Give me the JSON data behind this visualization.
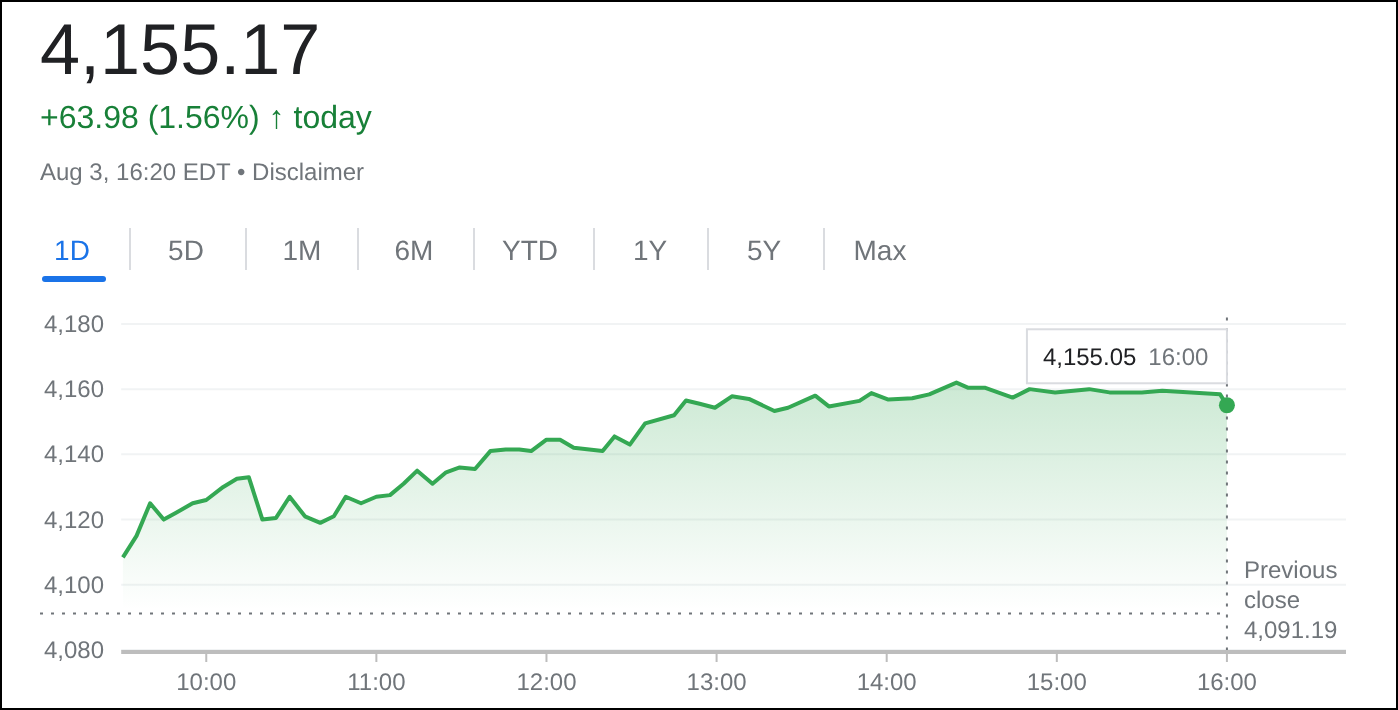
{
  "chart_data": {
    "type": "area",
    "title": "4,155.17",
    "subtitle": "+63.98 (1.56%) ↑ today",
    "annotations": [
      "Aug 3, 16:20 EDT • Disclaimer",
      "1D",
      "5D",
      "1M",
      "6M",
      "YTD",
      "1Y",
      "5Y",
      "Max",
      {
        "text": "4,155.05  16:00",
        "x": 16,
        "y": 4155.05
      }
    ],
    "x": [
      9.51,
      9.59,
      9.67,
      9.75,
      9.82,
      9.92,
      10.0,
      10.1,
      10.18,
      10.25,
      10.33,
      10.41,
      10.49,
      10.58,
      10.67,
      10.75,
      10.82,
      10.91,
      11.0,
      11.08,
      11.16,
      11.24,
      11.33,
      11.41,
      11.49,
      11.58,
      11.67,
      11.76,
      11.84,
      11.91,
      12.0,
      12.08,
      12.16,
      12.33,
      12.4,
      12.49,
      12.58,
      12.75,
      12.82,
      12.9,
      12.99,
      13.09,
      13.19,
      13.34,
      13.42,
      13.58,
      13.66,
      13.84,
      13.91,
      14.01,
      14.15,
      14.25,
      14.41,
      14.48,
      14.58,
      14.74,
      14.84,
      14.99,
      15.19,
      15.31,
      15.5,
      15.62,
      15.96,
      16.0
    ],
    "series": [
      {
        "color": "#34a853",
        "values": [
          4108.4,
          4115,
          4125,
          4120,
          4122,
          4125,
          4126,
          4130,
          4132.5,
          4133,
          4120,
          4120.5,
          4127,
          4121,
          4119,
          4121,
          4127,
          4125,
          4127,
          4127.5,
          4131,
          4135,
          4131,
          4134.5,
          4136,
          4135.5,
          4141,
          4141.5,
          4141.5,
          4141,
          4144.5,
          4144.5,
          4142,
          4141,
          4145.5,
          4143,
          4149.5,
          4152,
          4156.5,
          4155.5,
          4154.3,
          4157.8,
          4157,
          4153.3,
          4154.3,
          4158,
          4154.7,
          4156.4,
          4158.8,
          4156.8,
          4157.2,
          4158.4,
          4162,
          4160.4,
          4160.4,
          4157.4,
          4160,
          4159,
          4160,
          4159,
          4159,
          4159.5,
          4158.4,
          4155.05
        ]
      }
    ],
    "xlim": [
      9.5,
      16.7
    ],
    "ylim": [
      4080,
      4182
    ],
    "xticks": [
      {
        "value": 10,
        "label": "10:00"
      },
      {
        "value": 11,
        "label": "11:00"
      },
      {
        "value": 12,
        "label": "12:00"
      },
      {
        "value": 13,
        "label": "13:00"
      },
      {
        "value": 14,
        "label": "14:00"
      },
      {
        "value": 15,
        "label": "15:00"
      },
      {
        "value": 16,
        "label": "16:00"
      }
    ],
    "yticks": [
      {
        "value": 4080,
        "label": "4,080"
      },
      {
        "value": 4100,
        "label": "4,100"
      },
      {
        "value": 4120,
        "label": "4,120"
      },
      {
        "value": 4140,
        "label": "4,140"
      },
      {
        "value": 4160,
        "label": "4,160"
      },
      {
        "value": 4180,
        "label": "4,180"
      }
    ],
    "grid": "y",
    "ref_lines": [
      {
        "axis": "y",
        "value": 4091.19,
        "label": "Previous close 4,091.19",
        "line_style": "dotted"
      },
      {
        "axis": "x",
        "value": 16,
        "line_style": "dotted"
      }
    ]
  }
}
